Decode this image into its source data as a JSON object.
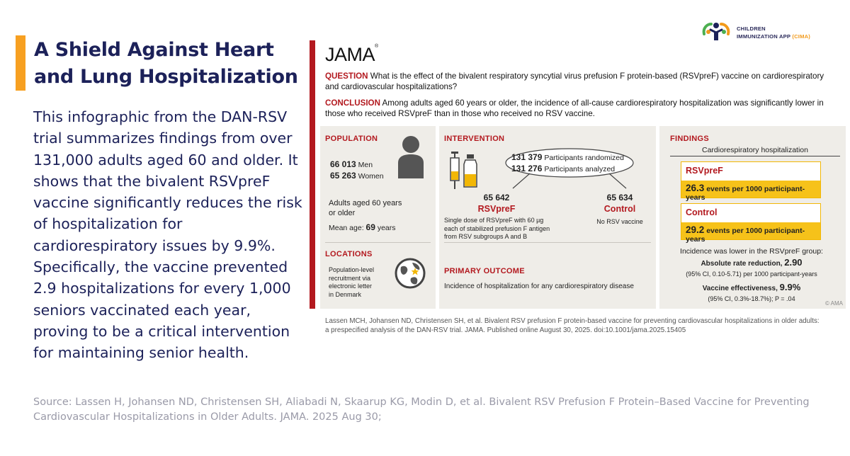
{
  "headline": "A Shield Against Heart and Lung Hospitalization",
  "summary": "This infographic from the DAN-RSV trial summarizes findings from over 131,000 adults aged 60 and older. It shows that the bivalent RSVpreF vaccine significantly reduces the risk of hospitalization for cardiorespiratory issues by 9.9%. Specifically, the vaccine prevented 2.9 hospitalizations for every 1,000 seniors vaccinated each year, proving to be a critical intervention for maintaining senior health.",
  "source": "Source: Lassen H, Johansen ND, Christensen SH, Aliabadi N, Skaarup KG, Modin D, et al. Bivalent RSV Prefusion F Protein–Based Vaccine for Preventing Cardiovascular Hospitalizations in Older Adults. JAMA. 2025 Aug 30;",
  "brand": {
    "line1": "CHILDREN",
    "line2": "IMMUNIZATION APP",
    "abbr": "(CIMA)"
  },
  "colors": {
    "accent": "#f7a021",
    "navy": "#1c2159",
    "jama_red": "#b3191f",
    "gold": "#f6c21a"
  },
  "infographic": {
    "logo": "JAMA",
    "question_label": "QUESTION",
    "question": "What is the effect of the bivalent respiratory syncytial virus prefusion F protein-based (RSVpreF) vaccine on cardiorespiratory and cardiovascular hospitalizations?",
    "conclusion_label": "CONCLUSION",
    "conclusion": "Among adults aged 60 years or older, the incidence of all-cause cardiorespiratory hospitalization was significantly lower in those who received RSVpreF than in those who received no RSV vaccine.",
    "population": {
      "title": "POPULATION",
      "men_count": "66 013",
      "men_label": "Men",
      "women_count": "65 263",
      "women_label": "Women",
      "age_line1": "Adults aged 60 years",
      "age_line2": "or older",
      "mean_label": "Mean age:",
      "mean_value": "69",
      "mean_unit": "years"
    },
    "locations": {
      "title": "LOCATIONS",
      "line1": "Population-level",
      "line2": "recruitment via",
      "line3": "electronic letter",
      "line4": "in Denmark"
    },
    "intervention": {
      "title": "INTERVENTION",
      "randomized_count": "131 379",
      "randomized_label": "Participants randomized",
      "analyzed_count": "131 276",
      "analyzed_label": "Participants analyzed",
      "arm1_count": "65 642",
      "arm1_name": "RSVpreF",
      "arm1_desc1": "Single dose of RSVpreF with 60 µg",
      "arm1_desc2": "each of stabilized prefusion F antigen",
      "arm1_desc3": "from RSV subgroups A and B",
      "arm2_count": "65 634",
      "arm2_name": "Control",
      "arm2_desc": "No RSV vaccine"
    },
    "primary_outcome": {
      "title": "PRIMARY OUTCOME",
      "text": "Incidence of hospitalization for any cardiorespiratory disease"
    },
    "findings": {
      "title": "FINDINGS",
      "subtitle": "Cardiorespiratory hospitalization",
      "group1_name": "RSVpreF",
      "group1_value": "26.3",
      "group1_unit": "events per 1000 participant-years",
      "group2_name": "Control",
      "group2_value": "29.2",
      "group2_unit": "events per 1000 participant-years",
      "lower_text": "Incidence was lower in the RSVpreF group:",
      "arr_label": "Absolute rate reduction,",
      "arr_value": "2.90",
      "arr_ci": "(95% CI, 0.10-5.71) per 1000 participant-years",
      "ve_label": "Vaccine effectiveness,",
      "ve_value": "9.9%",
      "ve_ci": "(95% CI, 0.3%-18.7%); P = .04"
    },
    "copyright": "© AMA",
    "citation_line1": "Lassen MCH, Johansen ND, Christensen SH, et al. Bivalent RSV prefusion F protein-based vaccine for preventing cardiovascular hospitalizations in older adults:",
    "citation_line2": "a prespecified analysis of the DAN-RSV trial. JAMA. Published online August 30, 2025. doi:10.1001/jama.2025.15405"
  }
}
